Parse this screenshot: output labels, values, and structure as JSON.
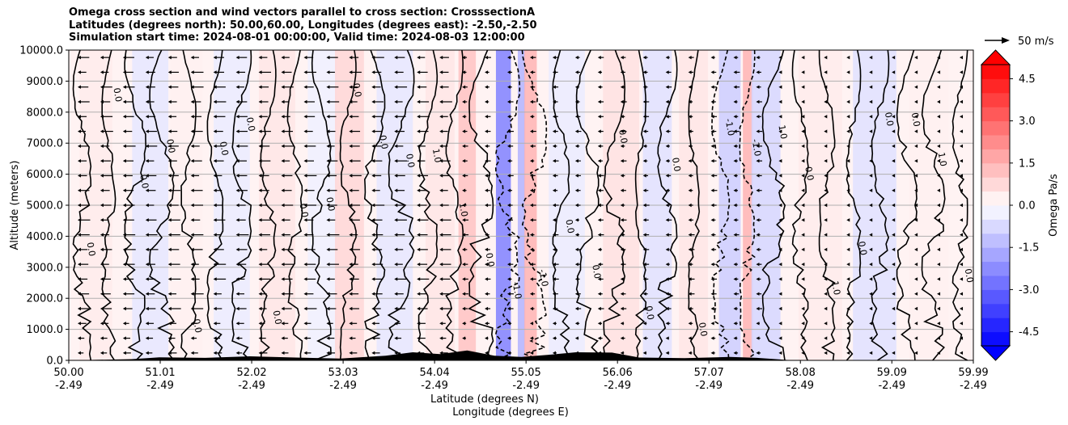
{
  "title_lines": [
    "Omega cross section and wind vectors parallel to cross section: CrosssectionA",
    "Latitudes (degrees north): 50.00,60.00, Longitudes (degrees east): -2.50,-2.50",
    "Simulation start time: 2024-08-01 00:00:00, Valid time: 2024-08-03 12:00:00"
  ],
  "chart_data": {
    "type": "heatmap",
    "ylabel": "Altitude (meters)",
    "xlabel_line1": "Latitude (degrees N)",
    "xlabel_line2": "Longitude (degrees E)",
    "ylim": [
      0,
      10000
    ],
    "yticks": [
      "0.0",
      "1000.0",
      "2000.0",
      "3000.0",
      "4000.0",
      "5000.0",
      "6000.0",
      "7000.0",
      "8000.0",
      "9000.0",
      "10000.0"
    ],
    "xlim": [
      50.0,
      59.99
    ],
    "xticks": [
      {
        "lat": "50.00",
        "lon": "-2.49",
        "value": 50.0
      },
      {
        "lat": "51.01",
        "lon": "-2.49",
        "value": 51.01
      },
      {
        "lat": "52.02",
        "lon": "-2.49",
        "value": 52.02
      },
      {
        "lat": "53.03",
        "lon": "-2.49",
        "value": 53.03
      },
      {
        "lat": "54.04",
        "lon": "-2.49",
        "value": 54.04
      },
      {
        "lat": "55.05",
        "lon": "-2.49",
        "value": 55.05
      },
      {
        "lat": "56.06",
        "lon": "-2.49",
        "value": 56.06
      },
      {
        "lat": "57.07",
        "lon": "-2.49",
        "value": 57.07
      },
      {
        "lat": "58.08",
        "lon": "-2.49",
        "value": 58.08
      },
      {
        "lat": "59.09",
        "lon": "-2.49",
        "value": 59.09
      },
      {
        "lat": "59.99",
        "lon": "-2.49",
        "value": 59.99
      }
    ],
    "grid": "horizontal",
    "colorbar": {
      "label": "Omega Pa/s",
      "ticks": [
        "-4.5",
        "-3.0",
        "-1.5",
        "0.0",
        "1.5",
        "3.0",
        "4.5"
      ],
      "range": [
        -5,
        5
      ],
      "colormap": "bwr",
      "extend": "both"
    },
    "quiver_key": {
      "label": "50 m/s"
    },
    "contour_labels": [
      "0.0",
      "1.0",
      "-1.0",
      "-2.0",
      "2.0"
    ],
    "omega_bands": [
      {
        "lat": 50.3,
        "value": 0.4
      },
      {
        "lat": 50.9,
        "value": -0.5
      },
      {
        "lat": 51.3,
        "value": 0.3
      },
      {
        "lat": 51.8,
        "value": -0.4
      },
      {
        "lat": 52.3,
        "value": 0.5
      },
      {
        "lat": 52.8,
        "value": -0.3
      },
      {
        "lat": 53.1,
        "value": 0.8
      },
      {
        "lat": 53.6,
        "value": -0.5
      },
      {
        "lat": 54.1,
        "value": 0.5
      },
      {
        "lat": 54.4,
        "value": 1.2
      },
      {
        "lat": 54.8,
        "value": -2.5
      },
      {
        "lat": 55.0,
        "value": -1.5
      },
      {
        "lat": 55.1,
        "value": 1.5
      },
      {
        "lat": 55.5,
        "value": -0.4
      },
      {
        "lat": 56.1,
        "value": 0.6
      },
      {
        "lat": 56.5,
        "value": -0.6
      },
      {
        "lat": 56.9,
        "value": 0.5
      },
      {
        "lat": 57.3,
        "value": -1.0
      },
      {
        "lat": 57.5,
        "value": 1.5
      },
      {
        "lat": 57.7,
        "value": -0.8
      },
      {
        "lat": 58.3,
        "value": 0.4
      },
      {
        "lat": 58.9,
        "value": -0.6
      },
      {
        "lat": 59.5,
        "value": 0.3
      }
    ],
    "terrain": [
      {
        "lat": 50.0,
        "alt": 0
      },
      {
        "lat": 50.7,
        "alt": 40
      },
      {
        "lat": 51.0,
        "alt": 100
      },
      {
        "lat": 51.5,
        "alt": 80
      },
      {
        "lat": 52.0,
        "alt": 130
      },
      {
        "lat": 52.5,
        "alt": 90
      },
      {
        "lat": 53.0,
        "alt": 60
      },
      {
        "lat": 53.5,
        "alt": 150
      },
      {
        "lat": 53.8,
        "alt": 260
      },
      {
        "lat": 54.1,
        "alt": 200
      },
      {
        "lat": 54.4,
        "alt": 320
      },
      {
        "lat": 54.7,
        "alt": 150
      },
      {
        "lat": 55.0,
        "alt": 110
      },
      {
        "lat": 55.3,
        "alt": 180
      },
      {
        "lat": 55.6,
        "alt": 260
      },
      {
        "lat": 56.0,
        "alt": 250
      },
      {
        "lat": 56.3,
        "alt": 90
      },
      {
        "lat": 56.8,
        "alt": 70
      },
      {
        "lat": 57.3,
        "alt": 110
      },
      {
        "lat": 57.6,
        "alt": 80
      },
      {
        "lat": 58.0,
        "alt": 0
      },
      {
        "lat": 59.99,
        "alt": 0
      }
    ]
  }
}
